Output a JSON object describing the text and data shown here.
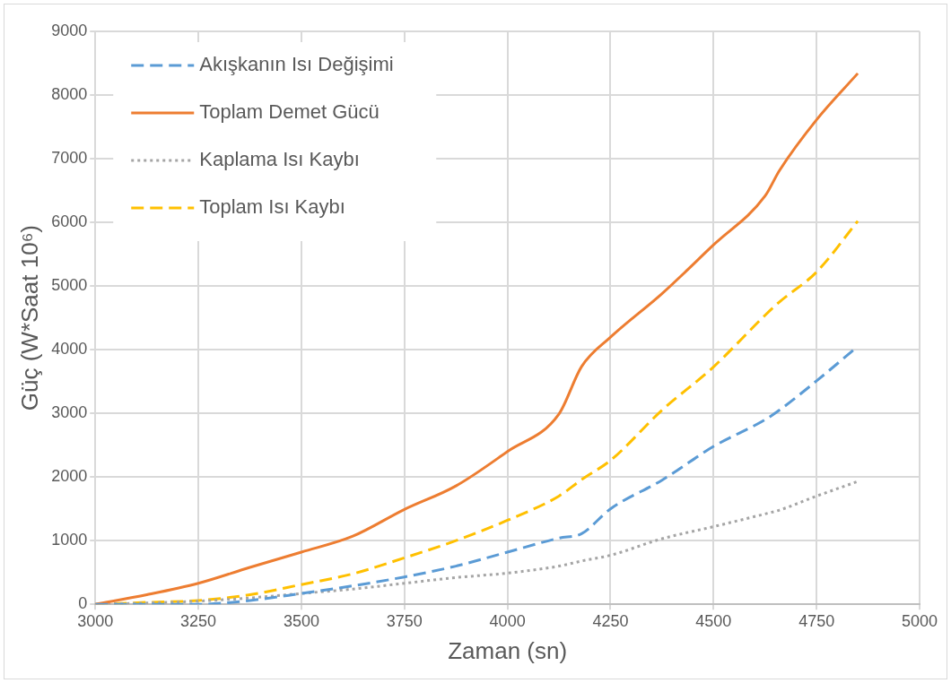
{
  "chart_data": {
    "type": "line",
    "xlabel": "Zaman (sn)",
    "ylabel": "Güç (W*Saat 10⁶)",
    "xlim": [
      3000,
      5000
    ],
    "xticks": [
      3000,
      3250,
      3500,
      3750,
      4000,
      4250,
      4500,
      4750,
      5000
    ],
    "ylim": [
      0,
      9000
    ],
    "yticks": [
      0,
      1000,
      2000,
      3000,
      4000,
      5000,
      6000,
      7000,
      8000,
      9000
    ],
    "grid": true,
    "legend": "top left",
    "marker": "none",
    "x": [
      3000,
      3125,
      3250,
      3375,
      3500,
      3625,
      3750,
      3875,
      4000,
      4125,
      4180,
      4250,
      4375,
      4500,
      4625,
      4660,
      4750,
      4850
    ],
    "series": [
      {
        "name": "Akışkanın Isı Değişimi",
        "color": "#5b9bd5",
        "line_style": "dashed",
        "values": [
          0,
          0,
          0,
          60,
          170,
          290,
          430,
          600,
          820,
          1040,
          1110,
          1500,
          1950,
          2480,
          2900,
          3050,
          3510,
          4050
        ]
      },
      {
        "name": "Toplam Demet Gücü",
        "color": "#ed7d31",
        "line_style": "solid",
        "values": [
          0,
          150,
          330,
          580,
          820,
          1070,
          1490,
          1860,
          2400,
          2990,
          3735,
          4196,
          4880,
          5646,
          6414,
          6815,
          7612,
          8340
        ]
      },
      {
        "name": "Kaplama Isı Kaybı",
        "color": "#a5a5a5",
        "line_style": "dotted",
        "values": [
          0,
          20,
          50,
          100,
          170,
          240,
          330,
          420,
          490,
          600,
          680,
          770,
          1030,
          1220,
          1420,
          1480,
          1700,
          1930
        ]
      },
      {
        "name": "Toplam Isı Kaybı",
        "color": "#ffc000",
        "line_style": "dashed",
        "values": [
          0,
          30,
          60,
          150,
          310,
          480,
          730,
          1000,
          1320,
          1700,
          1960,
          2260,
          3050,
          3730,
          4540,
          4750,
          5220,
          6020
        ]
      }
    ]
  }
}
